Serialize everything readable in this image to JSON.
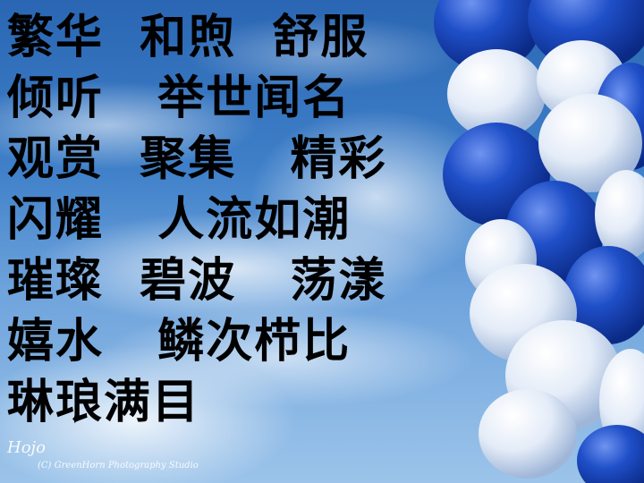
{
  "lines": [
    "繁华  和煦  舒服",
    "倾听   举世闻名",
    "观赏  聚集   精彩",
    "闪耀   人流如潮",
    "璀璨  碧波   荡漾",
    "嬉水   鳞次栉比",
    "琳琅满目"
  ],
  "watermark": {
    "logo": "Hojo",
    "credit": "(C) GreenHorn Photography Studio"
  },
  "colors": {
    "sky": "#3f80c9",
    "balloon_blue": "#1f4fc8",
    "balloon_white": "#eef3fb",
    "text": "#000000"
  }
}
